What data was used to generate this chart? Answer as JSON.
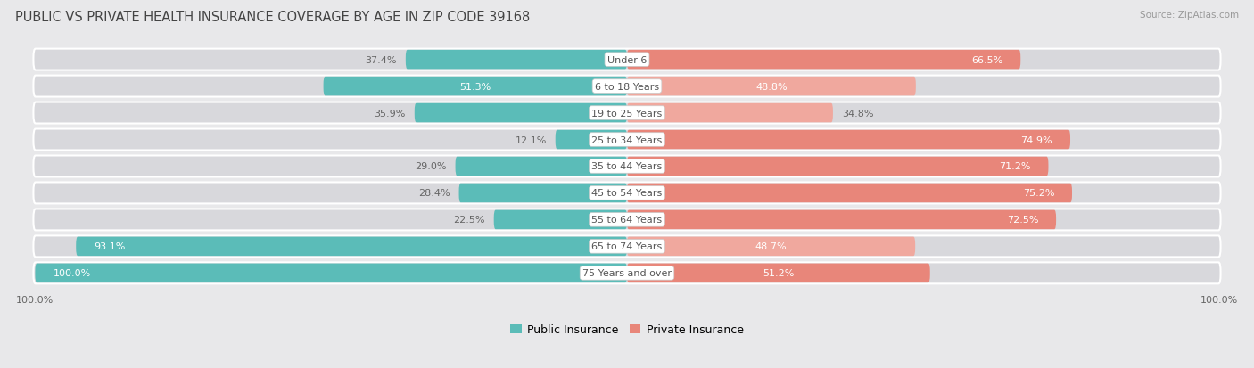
{
  "title": "PUBLIC VS PRIVATE HEALTH INSURANCE COVERAGE BY AGE IN ZIP CODE 39168",
  "source": "Source: ZipAtlas.com",
  "categories": [
    "Under 6",
    "6 to 18 Years",
    "19 to 25 Years",
    "25 to 34 Years",
    "35 to 44 Years",
    "45 to 54 Years",
    "55 to 64 Years",
    "65 to 74 Years",
    "75 Years and over"
  ],
  "public_values": [
    37.4,
    51.3,
    35.9,
    12.1,
    29.0,
    28.4,
    22.5,
    93.1,
    100.0
  ],
  "private_values": [
    66.5,
    48.8,
    34.8,
    74.9,
    71.2,
    75.2,
    72.5,
    48.7,
    51.2
  ],
  "public_color": "#5bbcb8",
  "private_color": "#e8867a",
  "private_color_light": "#f0a89e",
  "bg_color": "#e8e8ea",
  "row_bg_color": "#d8d8dc",
  "title_fontsize": 10.5,
  "label_fontsize": 8,
  "value_fontsize": 8,
  "legend_fontsize": 9,
  "source_fontsize": 7.5,
  "axis_max": 100.0
}
